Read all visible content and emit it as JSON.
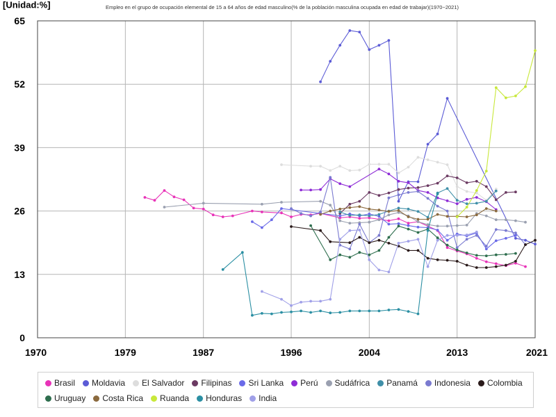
{
  "chart_data": {
    "type": "line",
    "title": "Empleo en el grupo de ocupación elemental de 15 a 64 años de edad masculino(% de la población masculina ocupada en edad de trabajar)(1970~2021)",
    "ylabel": "[Unidad:%]",
    "xlabel": "",
    "xlim": [
      1970,
      2021
    ],
    "ylim": [
      0,
      65
    ],
    "x_ticks": [
      1970,
      1979,
      1987,
      1996,
      2004,
      2013,
      2021
    ],
    "y_ticks": [
      0,
      13,
      26,
      39,
      52,
      65
    ],
    "grid": true,
    "legend_position": "bottom",
    "series": [
      {
        "name": "Brasil",
        "color": "#e833b8",
        "x": [
          1981,
          1982,
          1983,
          1984,
          1985,
          1986,
          1987,
          1988,
          1989,
          1990,
          1992,
          1993,
          1995,
          1996,
          1997,
          1998,
          1999,
          2001,
          2002,
          2003,
          2004,
          2005,
          2006,
          2007,
          2008,
          2009,
          2011,
          2012,
          2013,
          2014,
          2015,
          2016,
          2017,
          2018,
          2019,
          2020
        ],
        "values": [
          28.8,
          28.2,
          30.2,
          28.9,
          28.3,
          26.6,
          26.4,
          25.2,
          24.8,
          25.0,
          26.0,
          25.8,
          25.6,
          24.8,
          25.3,
          25.2,
          25.5,
          24.6,
          24.8,
          24.5,
          24.6,
          24.3,
          24.0,
          24.4,
          23.5,
          23.8,
          22.0,
          18.5,
          17.8,
          17.2,
          16.3,
          15.6,
          15.2,
          14.8,
          15.3,
          14.6
        ]
      },
      {
        "name": "Moldavia",
        "color": "#5b5bd6",
        "x": [
          1999,
          2000,
          2001,
          2002,
          2003,
          2004,
          2005,
          2006,
          2007,
          2008,
          2009,
          2010,
          2011,
          2012,
          2019,
          2020,
          2021
        ],
        "values": [
          52.5,
          56.7,
          60.0,
          63.0,
          62.7,
          59.1,
          60.0,
          61.0,
          28.0,
          32.0,
          32.0,
          39.7,
          41.8,
          49.1,
          20.4,
          20.0,
          19.2
        ]
      },
      {
        "name": "El Salvador",
        "color": "#dddddd",
        "x": [
          1995,
          1998,
          1999,
          2000,
          2001,
          2002,
          2003,
          2004,
          2005,
          2006,
          2007,
          2008,
          2009,
          2010,
          2011,
          2012,
          2013,
          2014,
          2015,
          2016,
          2017
        ],
        "values": [
          35.5,
          35.2,
          35.2,
          34.3,
          35.2,
          34.3,
          34.4,
          35.6,
          35.6,
          35.6,
          33.8,
          35.0,
          37.0,
          36.5,
          36.0,
          35.5,
          31.0,
          30.0,
          29.7,
          28.2,
          30.5
        ]
      },
      {
        "name": "Filipinas",
        "color": "#6b3a62",
        "x": [
          2001,
          2002,
          2003,
          2004,
          2005,
          2006,
          2007,
          2008,
          2009,
          2010,
          2011,
          2012,
          2013,
          2014,
          2015,
          2016,
          2017,
          2018,
          2019
        ],
        "values": [
          25.5,
          27.4,
          28.0,
          29.8,
          29.2,
          29.7,
          30.4,
          30.7,
          30.8,
          31.2,
          31.7,
          33.2,
          32.8,
          31.8,
          32.1,
          31.0,
          28.3,
          29.8,
          29.9
        ]
      },
      {
        "name": "Sri Lanka",
        "color": "#6a6ae8",
        "x": [
          1992,
          1993,
          1994,
          1995,
          2001,
          2002,
          2003,
          2004,
          2005,
          2006,
          2007,
          2008,
          2009,
          2010,
          2011,
          2012,
          2013,
          2014,
          2015,
          2016,
          2017,
          2018,
          2019
        ],
        "values": [
          23.8,
          22.6,
          24.2,
          26.5,
          25.0,
          25.4,
          25.0,
          25.4,
          24.9,
          23.3,
          23.4,
          23.0,
          22.7,
          22.6,
          22.1,
          20.0,
          21.3,
          20.9,
          21.5,
          18.2,
          19.9,
          20.4,
          21.0
        ]
      },
      {
        "name": "Perú",
        "color": "#8e2cd6",
        "x": [
          1997,
          1998,
          1999,
          2000,
          2001,
          2002,
          2005,
          2006,
          2007,
          2008,
          2009,
          2010,
          2011,
          2012,
          2013,
          2014,
          2015,
          2016,
          2017
        ],
        "values": [
          30.3,
          30.3,
          30.4,
          32.6,
          31.6,
          31.0,
          34.6,
          33.6,
          32.1,
          31.8,
          30.2,
          29.8,
          28.7,
          28.1,
          27.5,
          28.4,
          28.8,
          27.9,
          26.3
        ]
      },
      {
        "name": "Sudáfrica",
        "color": "#9aa0b0",
        "x": [
          1983,
          1987,
          1993,
          1995,
          1999,
          2000,
          2001,
          2002,
          2003,
          2004,
          2005,
          2006,
          2007,
          2008,
          2009,
          2010,
          2011,
          2012,
          2013,
          2014,
          2015,
          2016,
          2017,
          2018,
          2019,
          2020
        ],
        "values": [
          26.8,
          27.6,
          27.4,
          27.8,
          28.0,
          27.2,
          24.0,
          23.5,
          23.6,
          23.7,
          24.2,
          25.2,
          25.7,
          25.0,
          23.8,
          23.2,
          22.9,
          22.9,
          23.0,
          23.1,
          25.5,
          25.0,
          24.2,
          24.2,
          24.0,
          23.7
        ]
      },
      {
        "name": "Panamá",
        "color": "#3f8fa8",
        "x": [
          2001,
          2002,
          2003,
          2004,
          2005,
          2006,
          2007,
          2008,
          2009,
          2010,
          2011,
          2012,
          2013,
          2014,
          2015,
          2016,
          2017
        ],
        "values": [
          25.8,
          25.1,
          25.2,
          25.0,
          25.3,
          26.0,
          26.6,
          26.4,
          25.9,
          24.7,
          29.7,
          30.6,
          28.2,
          27.5,
          27.6,
          28.0,
          30.1
        ]
      },
      {
        "name": "Indonesia",
        "color": "#7a7ad0",
        "x": [
          1996,
          1997,
          1998,
          1999,
          2000,
          2001,
          2002,
          2003,
          2004,
          2005,
          2006,
          2007,
          2008,
          2009,
          2010,
          2011,
          2012,
          2013,
          2014,
          2015,
          2016,
          2017,
          2018,
          2019,
          2020
        ],
        "values": [
          26.5,
          25.5,
          25.0,
          25.8,
          32.9,
          19.0,
          18.2,
          23.3,
          19.5,
          21.0,
          28.7,
          29.3,
          29.8,
          30.0,
          28.6,
          27.0,
          26.0,
          18.5,
          20.2,
          21.0,
          18.8,
          22.2,
          22.0,
          21.5,
          19.1
        ]
      },
      {
        "name": "Colombia",
        "color": "#2a1a1a",
        "x": [
          1996,
          1999,
          2000,
          2002,
          2003,
          2004,
          2005,
          2006,
          2007,
          2008,
          2009,
          2010,
          2011,
          2012,
          2013,
          2014,
          2015,
          2016,
          2017,
          2018,
          2019,
          2020,
          2021
        ],
        "values": [
          22.8,
          22.0,
          19.7,
          19.5,
          20.6,
          19.5,
          20.0,
          19.4,
          18.8,
          17.9,
          17.9,
          16.3,
          16.0,
          15.9,
          15.7,
          14.9,
          14.4,
          14.4,
          14.6,
          14.9,
          15.7,
          19.1,
          20.0
        ]
      },
      {
        "name": "Uruguay",
        "color": "#2e6e4e",
        "x": [
          1998,
          2000,
          2001,
          2002,
          2003,
          2004,
          2005,
          2006,
          2007,
          2008,
          2009,
          2010,
          2011,
          2012,
          2013,
          2014,
          2015,
          2016,
          2017,
          2018,
          2019
        ],
        "values": [
          23.0,
          16.0,
          17.0,
          16.5,
          17.5,
          17.0,
          17.9,
          20.6,
          22.9,
          22.3,
          21.6,
          22.3,
          20.5,
          19.0,
          18.0,
          17.4,
          16.9,
          16.8,
          17.0,
          17.1,
          17.3
        ]
      },
      {
        "name": "Costa Rica",
        "color": "#8b6a3e",
        "x": [
          1999,
          2000,
          2001,
          2002,
          2003,
          2004,
          2005,
          2006,
          2007,
          2008,
          2009,
          2010,
          2011,
          2012,
          2013,
          2014,
          2015,
          2016,
          2017
        ],
        "values": [
          25.3,
          26.0,
          26.4,
          26.7,
          26.9,
          26.4,
          26.2,
          25.9,
          26.1,
          24.8,
          24.3,
          24.3,
          25.3,
          24.9,
          24.9,
          24.8,
          25.2,
          26.5,
          26.0
        ]
      },
      {
        "name": "Ruanda",
        "color": "#c8e83a",
        "x": [
          2013,
          2014,
          2015,
          2016,
          2017,
          2018,
          2019,
          2020,
          2021
        ],
        "values": [
          24.8,
          26.8,
          30.2,
          34.2,
          51.3,
          49.2,
          49.6,
          51.5,
          58.9
        ]
      },
      {
        "name": "Honduras",
        "color": "#2b8fa3",
        "x": [
          1989,
          1991,
          1992,
          1993,
          1994,
          1995,
          1996,
          1997,
          1998,
          1999,
          2000,
          2001,
          2002,
          2003,
          2004,
          2005,
          2006,
          2007,
          2008,
          2009,
          2010,
          2011
        ],
        "values": [
          14.0,
          17.5,
          4.6,
          5.0,
          4.9,
          5.2,
          5.3,
          5.5,
          5.2,
          5.5,
          5.1,
          5.2,
          5.5,
          5.5,
          5.5,
          5.5,
          5.7,
          5.8,
          5.4,
          4.9,
          22.0,
          29.5
        ]
      },
      {
        "name": "India",
        "color": "#a0a0e8",
        "x": [
          1993,
          1995,
          1996,
          1997,
          1998,
          1999,
          2000,
          2001,
          2002,
          2003,
          2004,
          2005,
          2006,
          2007,
          2008,
          2009,
          2010,
          2011,
          2012,
          2013,
          2014,
          2015
        ],
        "values": [
          9.5,
          7.9,
          6.6,
          7.3,
          7.5,
          7.5,
          7.9,
          20.2,
          22.0,
          22.1,
          16.0,
          13.9,
          13.5,
          19.4,
          19.8,
          20.2,
          14.6,
          20.0,
          21.0,
          21.0,
          21.1,
          21.7
        ]
      }
    ]
  }
}
